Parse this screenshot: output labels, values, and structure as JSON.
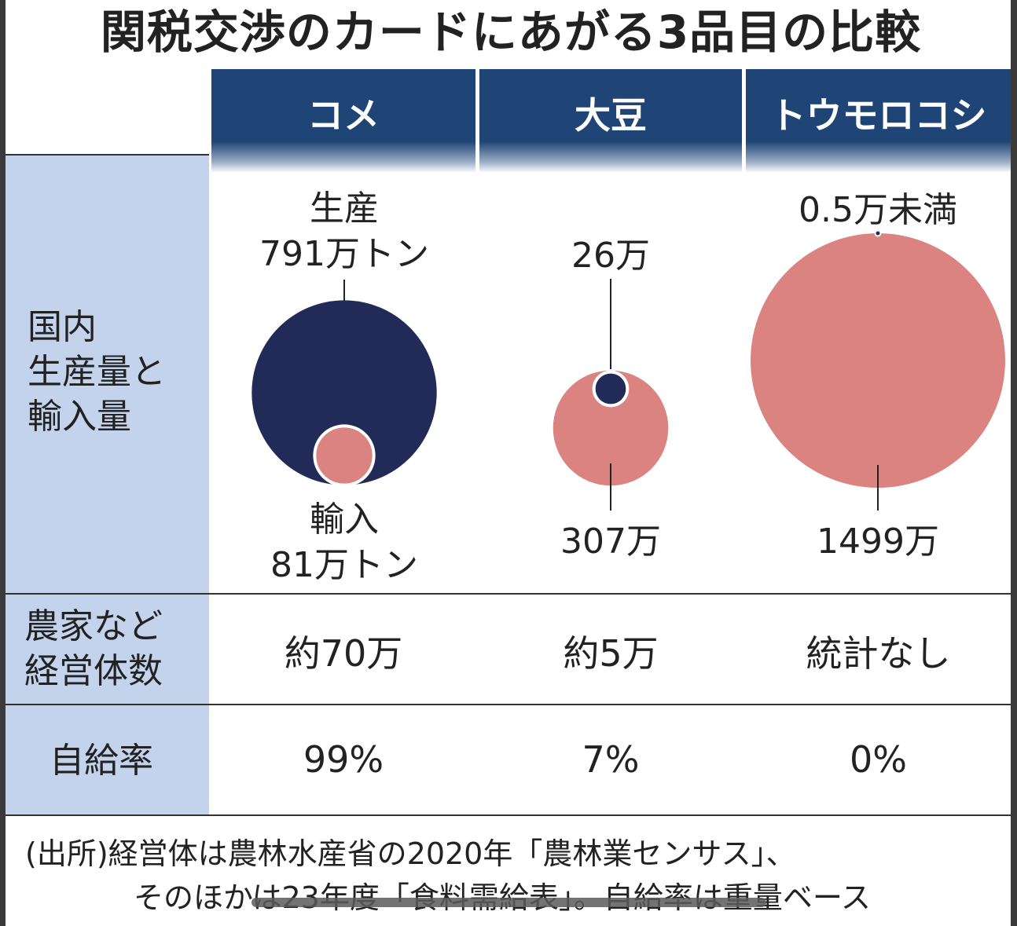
{
  "title": "関税交渉のカードにあがる3品目の比較",
  "columns": [
    "コメ",
    "大豆",
    "トウモロコシ"
  ],
  "row_labels": {
    "volume": [
      "国内",
      "生産量と",
      "輸入量"
    ],
    "farms": [
      "農家など",
      "経営体数"
    ],
    "self_sufficiency": "自給率"
  },
  "volume_labels": {
    "rice_production": [
      "生産",
      "791万トン"
    ],
    "rice_import": [
      "輸入",
      "81万トン"
    ],
    "soy_production": "26万",
    "soy_import": "307万",
    "corn_production": "0.5万未満",
    "corn_import": "1499万"
  },
  "farms": [
    "約70万",
    "約5万",
    "統計なし"
  ],
  "self_sufficiency": [
    "99%",
    "7%",
    "0%"
  ],
  "source": [
    "(出所)経営体は農林水産省の2020年「農林業センサス」、",
    "そのほかは23年度「食料需給表」。自給率は重量ベース"
  ],
  "colors": {
    "production": "#222b57",
    "import": "#db8380",
    "header": "#1f4577",
    "label_bg": "#c3d3ec"
  },
  "chart_data": {
    "type": "bubble",
    "title": "関税交渉のカードにあがる3品目の比較",
    "unit": "万トン",
    "categories": [
      "コメ",
      "大豆",
      "トウモロコシ"
    ],
    "series": [
      {
        "name": "生産",
        "values": [
          791,
          26,
          0.5
        ]
      },
      {
        "name": "輸入",
        "values": [
          81,
          307,
          1499
        ]
      }
    ]
  }
}
